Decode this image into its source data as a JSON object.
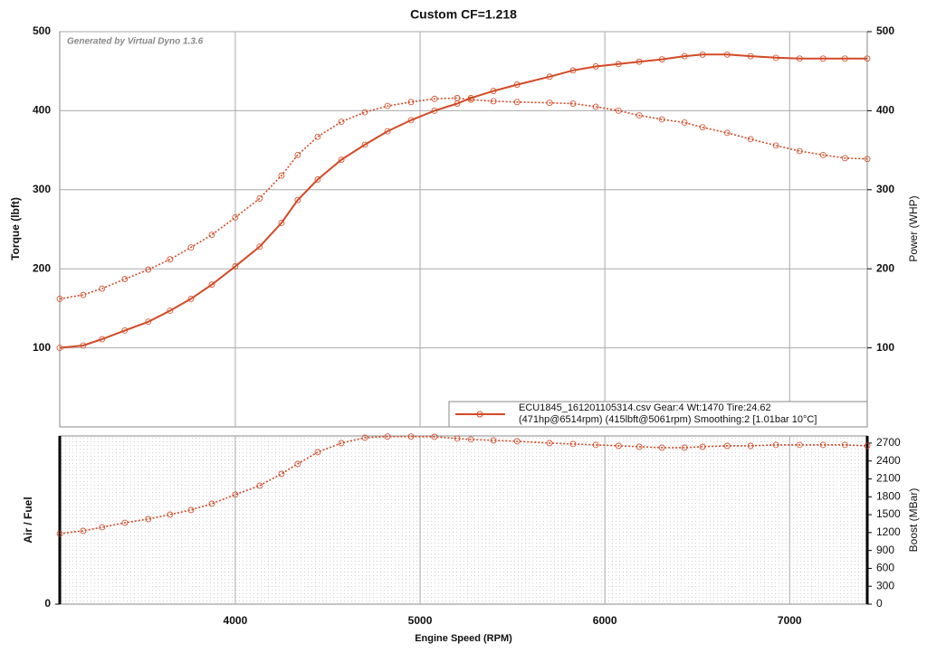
{
  "chart_data": [
    {
      "type": "line",
      "title": "Custom CF=1.218",
      "annotation": "Generated by Virtual Dyno 1.3.6",
      "ylabel": "Torque (lbft)",
      "y2label": "Power (WHP)",
      "legend": {
        "lines": [
          "ECU1845_161201105314.csv Gear:4 Wt:1470 Tire:24.62",
          "(471hp@6514rpm) (415lbft@5061rpm) Smoothing:2 [1.01bar 10°C]"
        ],
        "color": "#d24a26"
      },
      "xlim": [
        3050,
        7420
      ],
      "xticks": [
        4000,
        5000,
        6000,
        7000
      ],
      "ylim": [
        0,
        500
      ],
      "yticks": [
        100,
        200,
        300,
        400,
        500
      ],
      "y2lim": [
        0,
        500
      ],
      "y2ticks": [
        100,
        200,
        300,
        400,
        500
      ],
      "grid": true,
      "x": [
        3050,
        3177,
        3279,
        3402,
        3529,
        3647,
        3760,
        3873,
        4000,
        4132,
        4250,
        4338,
        4446,
        4574,
        4701,
        4824,
        4951,
        5078,
        5201,
        5275,
        5397,
        5525,
        5701,
        5828,
        5951,
        6074,
        6186,
        6309,
        6431,
        6529,
        6662,
        6789,
        6926,
        7054,
        7181,
        7299,
        7420
      ],
      "series": [
        {
          "color": "#d24a26",
          "dash": "solid",
          "axis": "y2",
          "values": [
            100,
            103,
            111,
            122,
            133,
            147,
            162,
            180,
            203,
            228,
            258,
            287,
            313,
            338,
            357,
            374,
            388,
            400,
            409,
            416,
            425,
            433,
            443,
            451,
            456,
            459,
            462,
            465,
            469,
            471,
            471,
            469,
            467,
            466,
            466,
            466,
            466
          ]
        },
        {
          "color": "#d24a26",
          "dash": "dotted",
          "values": [
            162,
            167,
            175,
            187,
            199,
            212,
            227,
            243,
            265,
            289,
            318,
            344,
            367,
            386,
            398,
            406,
            411,
            415,
            416,
            414,
            412,
            411,
            410,
            409,
            405,
            400,
            394,
            389,
            385,
            379,
            372,
            364,
            356,
            349,
            344,
            340,
            339
          ]
        }
      ]
    },
    {
      "type": "line",
      "xlabel": "Engine Speed (RPM)",
      "ylabel": "Air / Fuel",
      "y2label": "Boost (MBar)",
      "xlim": [
        3050,
        7420
      ],
      "xticks": [
        4000,
        5000,
        6000,
        7000
      ],
      "ylim": [
        0,
        2820
      ],
      "yticks": [
        0
      ],
      "y2lim": [
        0,
        2820
      ],
      "y2ticks": [
        0,
        300,
        600,
        900,
        1200,
        1500,
        1800,
        2100,
        2400,
        2700
      ],
      "x": [
        3050,
        3177,
        3279,
        3402,
        3529,
        3647,
        3760,
        3873,
        4000,
        4132,
        4250,
        4338,
        4446,
        4574,
        4701,
        4824,
        4951,
        5078,
        5201,
        5275,
        5397,
        5525,
        5701,
        5828,
        5951,
        6074,
        6186,
        6309,
        6431,
        6529,
        6662,
        6789,
        6926,
        7054,
        7181,
        7299,
        7420
      ],
      "series": [
        {
          "color": "#d24a26",
          "dash": "dotted",
          "axis": "y2",
          "values": [
            1183,
            1229,
            1289,
            1365,
            1426,
            1502,
            1578,
            1684,
            1836,
            1987,
            2184,
            2351,
            2548,
            2700,
            2791,
            2810,
            2810,
            2806,
            2776,
            2761,
            2745,
            2730,
            2700,
            2685,
            2670,
            2654,
            2639,
            2624,
            2624,
            2639,
            2654,
            2654,
            2670,
            2670,
            2670,
            2670,
            2654
          ]
        }
      ]
    }
  ]
}
